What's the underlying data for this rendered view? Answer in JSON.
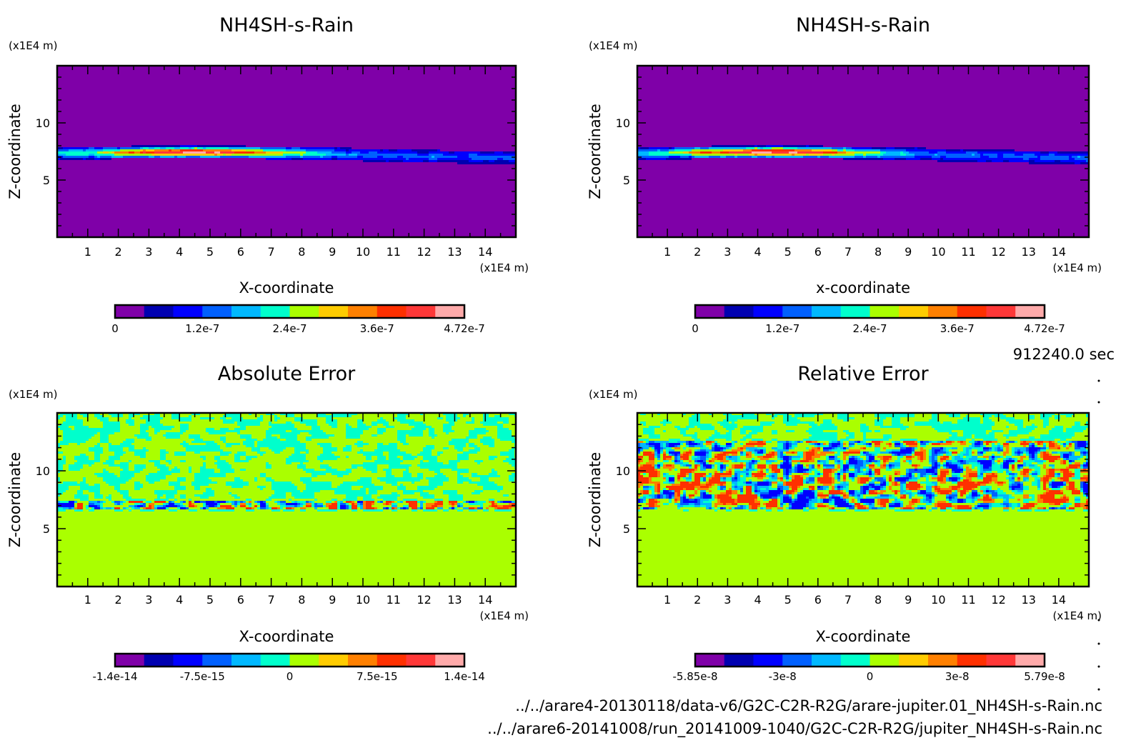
{
  "header": {
    "time_label": "912240.0 sec"
  },
  "footer": {
    "file_1": "../../arare4-20130118/data-v6/G2C-C2R-R2G/arare-jupiter.01_NH4SH-s-Rain.nc",
    "file_2": "../../arare6-20141008/run_20141009-1040/G2C-C2R-R2G/jupiter_NH4SH-s-Rain.nc"
  },
  "palette": [
    "#7f00a8",
    "#0000b0",
    "#0000ff",
    "#0060ff",
    "#00b8ff",
    "#00ffcc",
    "#aaff00",
    "#ffcc00",
    "#ff8000",
    "#ff3000",
    "#ff3838",
    "#ffaaaa"
  ],
  "chart_data": [
    {
      "type": "heatmap",
      "title": "NH4SH-s-Rain",
      "xlabel": "X-coordinate",
      "ylabel": "Z-coordinate",
      "x_unit": "(x1E4 m)",
      "y_unit": "(x1E4 m)",
      "xlim": [
        0,
        15
      ],
      "ylim": [
        0,
        15
      ],
      "x_ticks": [
        "1",
        "2",
        "3",
        "4",
        "5",
        "6",
        "7",
        "8",
        "9",
        "10",
        "11",
        "12",
        "13",
        "14"
      ],
      "y_ticks": [
        "5",
        "10"
      ],
      "pattern": "band",
      "band_center_z": 7.2,
      "background_level": 0,
      "colorbar": {
        "labels": [
          "0",
          "1.2e-7",
          "2.4e-7",
          "3.6e-7",
          "4.72e-7"
        ],
        "min": 0,
        "max": 4.72e-07
      }
    },
    {
      "type": "heatmap",
      "title": "NH4SH-s-Rain",
      "xlabel": "x-coordinate",
      "ylabel": "Z-coordinate",
      "x_unit": "(x1E4 m)",
      "y_unit": "(x1E4 m)",
      "xlim": [
        0,
        15
      ],
      "ylim": [
        0,
        15
      ],
      "x_ticks": [
        "1",
        "2",
        "3",
        "4",
        "5",
        "6",
        "7",
        "8",
        "9",
        "10",
        "11",
        "12",
        "13",
        "14"
      ],
      "y_ticks": [
        "5",
        "10"
      ],
      "pattern": "band",
      "band_center_z": 7.2,
      "background_level": 0,
      "colorbar": {
        "labels": [
          "0",
          "1.2e-7",
          "2.4e-7",
          "3.6e-7",
          "4.72e-7"
        ],
        "min": 0,
        "max": 4.72e-07
      }
    },
    {
      "type": "heatmap",
      "title": "Absolute Error",
      "xlabel": "X-coordinate",
      "ylabel": "Z-coordinate",
      "x_unit": "(x1E4 m)",
      "y_unit": "(x1E4 m)",
      "xlim": [
        0,
        15
      ],
      "ylim": [
        0,
        15
      ],
      "x_ticks": [
        "1",
        "2",
        "3",
        "4",
        "5",
        "6",
        "7",
        "8",
        "9",
        "10",
        "11",
        "12",
        "13",
        "14"
      ],
      "y_ticks": [
        "5",
        "10"
      ],
      "pattern": "noise-abs",
      "noise_zone_z": [
        6.5,
        15
      ],
      "strong_zone_z": [
        6.6,
        7.4
      ],
      "background_level": 6,
      "colorbar": {
        "labels": [
          "-1.4e-14",
          "-7.5e-15",
          "0",
          "7.5e-15",
          "1.4e-14"
        ],
        "min": -1.4e-14,
        "max": 1.4e-14
      }
    },
    {
      "type": "heatmap",
      "title": "Relative Error",
      "xlabel": "X-coordinate",
      "ylabel": "Z-coordinate",
      "x_unit": "(x1E4 m)",
      "y_unit": "(x1E4 m)",
      "xlim": [
        0,
        15
      ],
      "ylim": [
        0,
        15
      ],
      "x_ticks": [
        "1",
        "2",
        "3",
        "4",
        "5",
        "6",
        "7",
        "8",
        "9",
        "10",
        "11",
        "12",
        "13",
        "14"
      ],
      "y_ticks": [
        "5",
        "10"
      ],
      "pattern": "noise-rel",
      "noise_zone_z": [
        6.5,
        15
      ],
      "strong_zone_z": [
        6.6,
        12.6
      ],
      "background_level": 6,
      "colorbar": {
        "labels": [
          "-5.85e-8",
          "-3e-8",
          "0",
          "3e-8",
          "5.79e-8"
        ],
        "min": -5.85e-08,
        "max": 5.79e-08
      }
    }
  ]
}
